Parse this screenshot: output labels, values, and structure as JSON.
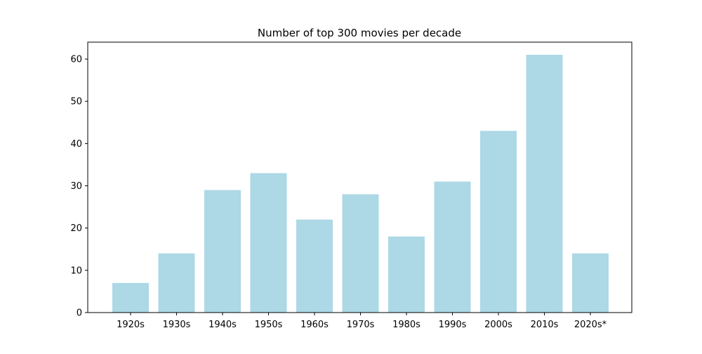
{
  "chart_data": {
    "type": "bar",
    "title": "Number of top 300 movies per decade",
    "xlabel": "",
    "ylabel": "",
    "categories": [
      "1920s",
      "1930s",
      "1940s",
      "1950s",
      "1960s",
      "1970s",
      "1980s",
      "1990s",
      "2000s",
      "2010s",
      "2020s*"
    ],
    "values": [
      7,
      14,
      29,
      33,
      22,
      28,
      18,
      31,
      43,
      61,
      14
    ],
    "ylim": [
      0,
      64
    ],
    "yticks": [
      0,
      10,
      20,
      30,
      40,
      50,
      60
    ],
    "grid": false,
    "legend": "none",
    "bar_color": "#add8e6",
    "axis_color": "#000000"
  }
}
